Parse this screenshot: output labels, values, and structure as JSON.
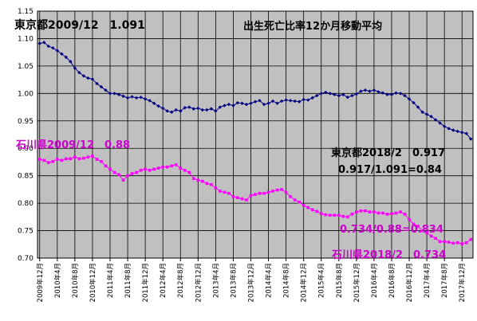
{
  "chart_data": {
    "type": "line",
    "title": "出生死亡比率12か月移動平均",
    "xlabel": "",
    "ylabel": "",
    "ylim": [
      0.7,
      1.15
    ],
    "ytick_step": 0.05,
    "y_tick_labels": [
      "0.70",
      "0.75",
      "0.80",
      "0.85",
      "0.90",
      "0.95",
      "1.00",
      "1.05",
      "1.10",
      "1.15"
    ],
    "grid": true,
    "x_tick_labels": [
      "2009年12月",
      "2010年4月",
      "2010年8月",
      "2010年12月",
      "2011年4月",
      "2011年8月",
      "2011年12月",
      "2012年4月",
      "2012年8月",
      "2012年12月",
      "2013年4月",
      "2013年8月",
      "2013年12月",
      "2014年4月",
      "2014年8月",
      "2014年12月",
      "2015年4月",
      "2015年8月",
      "2015年12月",
      "2016年4月",
      "2016年8月",
      "2016年12月",
      "2017年4月",
      "2017年8月",
      "2017年12月"
    ],
    "x_months": [
      "2009-12",
      "2010-01",
      "2010-02",
      "2010-03",
      "2010-04",
      "2010-05",
      "2010-06",
      "2010-07",
      "2010-08",
      "2010-09",
      "2010-10",
      "2010-11",
      "2010-12",
      "2011-01",
      "2011-02",
      "2011-03",
      "2011-04",
      "2011-05",
      "2011-06",
      "2011-07",
      "2011-08",
      "2011-09",
      "2011-10",
      "2011-11",
      "2011-12",
      "2012-01",
      "2012-02",
      "2012-03",
      "2012-04",
      "2012-05",
      "2012-06",
      "2012-07",
      "2012-08",
      "2012-09",
      "2012-10",
      "2012-11",
      "2012-12",
      "2013-01",
      "2013-02",
      "2013-03",
      "2013-04",
      "2013-05",
      "2013-06",
      "2013-07",
      "2013-08",
      "2013-09",
      "2013-10",
      "2013-11",
      "2013-12",
      "2014-01",
      "2014-02",
      "2014-03",
      "2014-04",
      "2014-05",
      "2014-06",
      "2014-07",
      "2014-08",
      "2014-09",
      "2014-10",
      "2014-11",
      "2014-12",
      "2015-01",
      "2015-02",
      "2015-03",
      "2015-04",
      "2015-05",
      "2015-06",
      "2015-07",
      "2015-08",
      "2015-09",
      "2015-10",
      "2015-11",
      "2015-12",
      "2016-01",
      "2016-02",
      "2016-03",
      "2016-04",
      "2016-05",
      "2016-06",
      "2016-07",
      "2016-08",
      "2016-09",
      "2016-10",
      "2016-11",
      "2016-12",
      "2017-01",
      "2017-02",
      "2017-03",
      "2017-04",
      "2017-05",
      "2017-06",
      "2017-07",
      "2017-08",
      "2017-09",
      "2017-10",
      "2017-11",
      "2017-12",
      "2018-01",
      "2018-02"
    ],
    "series": [
      {
        "name": "東京都",
        "color": "#000080",
        "marker": "diamond",
        "values": [
          1.091,
          1.093,
          1.086,
          1.083,
          1.078,
          1.072,
          1.066,
          1.058,
          1.046,
          1.038,
          1.032,
          1.028,
          1.026,
          1.018,
          1.012,
          1.006,
          1.0,
          1.0,
          0.998,
          0.995,
          0.992,
          0.994,
          0.992,
          0.993,
          0.99,
          0.987,
          0.982,
          0.977,
          0.973,
          0.968,
          0.966,
          0.97,
          0.968,
          0.974,
          0.975,
          0.972,
          0.973,
          0.97,
          0.97,
          0.972,
          0.968,
          0.975,
          0.978,
          0.98,
          0.978,
          0.983,
          0.982,
          0.98,
          0.982,
          0.985,
          0.987,
          0.98,
          0.982,
          0.986,
          0.982,
          0.986,
          0.988,
          0.987,
          0.986,
          0.985,
          0.989,
          0.988,
          0.992,
          0.996,
          1.0,
          1.002,
          1.0,
          0.998,
          0.996,
          0.998,
          0.993,
          0.996,
          0.999,
          1.004,
          1.006,
          1.004,
          1.006,
          1.003,
          1.001,
          0.998,
          0.998,
          1.001,
          1.0,
          0.996,
          0.99,
          0.983,
          0.975,
          0.966,
          0.962,
          0.958,
          0.952,
          0.946,
          0.94,
          0.936,
          0.933,
          0.931,
          0.929,
          0.927,
          0.917
        ]
      },
      {
        "name": "石川県",
        "color": "#ff00ff",
        "marker": "square",
        "values": [
          0.88,
          0.878,
          0.874,
          0.876,
          0.88,
          0.878,
          0.881,
          0.881,
          0.884,
          0.881,
          0.882,
          0.884,
          0.886,
          0.88,
          0.876,
          0.868,
          0.862,
          0.856,
          0.852,
          0.842,
          0.85,
          0.854,
          0.856,
          0.86,
          0.862,
          0.86,
          0.862,
          0.864,
          0.866,
          0.866,
          0.868,
          0.87,
          0.864,
          0.86,
          0.856,
          0.845,
          0.842,
          0.84,
          0.836,
          0.834,
          0.828,
          0.822,
          0.82,
          0.818,
          0.812,
          0.81,
          0.808,
          0.806,
          0.814,
          0.816,
          0.818,
          0.818,
          0.82,
          0.822,
          0.824,
          0.825,
          0.82,
          0.812,
          0.806,
          0.802,
          0.796,
          0.792,
          0.788,
          0.785,
          0.781,
          0.779,
          0.778,
          0.778,
          0.778,
          0.776,
          0.775,
          0.78,
          0.784,
          0.786,
          0.786,
          0.784,
          0.784,
          0.782,
          0.782,
          0.78,
          0.781,
          0.782,
          0.784,
          0.78,
          0.77,
          0.762,
          0.758,
          0.75,
          0.746,
          0.74,
          0.736,
          0.73,
          0.73,
          0.729,
          0.727,
          0.728,
          0.726,
          0.728,
          0.734
        ]
      }
    ]
  },
  "annotations": {
    "tokyo_start": "東京都2009/12　1.091",
    "ishikawa_start": "石川県2009/12　0.88",
    "tokyo_end": "東京都2018/2　0.917",
    "tokyo_ratio": "0.917/1.091=0.84",
    "ishikawa_ratio": "0.734/0.88=0.834",
    "ishikawa_end": "石川県2018/2　0.734"
  },
  "colors": {
    "plot_background": "#c0c0c0",
    "gridline": "#000000",
    "tokyo_text": "#000000",
    "ishikawa_text": "#cc00cc"
  }
}
